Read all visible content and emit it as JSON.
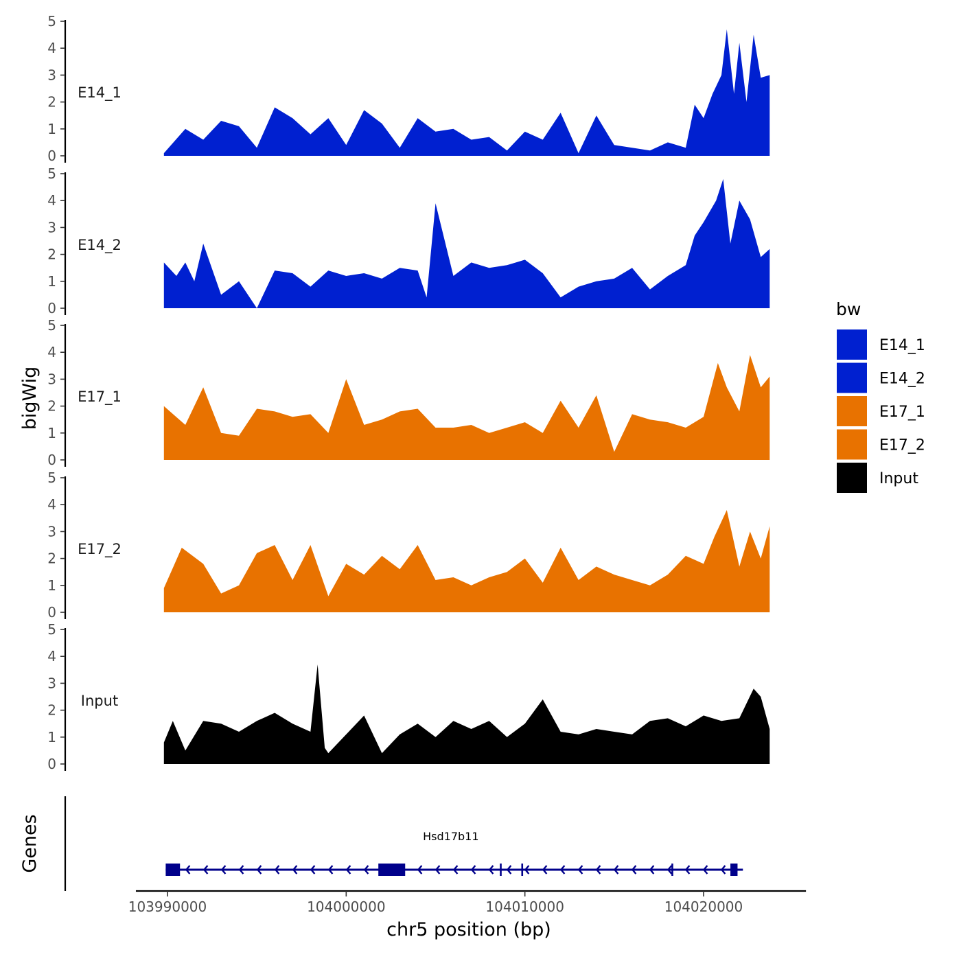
{
  "chart_data": {
    "type": "area",
    "region": "chr5",
    "xlabel": "chr5 position (bp)",
    "ylabel": "bigWig",
    "gene_panel_label": "Genes",
    "xlim": [
      103989000,
      104024000
    ],
    "x_ticks": [
      103990000,
      104000000,
      104010000,
      104020000
    ],
    "x_tick_labels": [
      "103990000",
      "104000000",
      "104010000",
      "104020000"
    ],
    "ylim": [
      0,
      5
    ],
    "y_ticks": [
      0,
      1,
      2,
      3,
      4,
      5
    ],
    "y_tick_labels": [
      "0",
      "1",
      "2",
      "3",
      "4",
      "5"
    ],
    "legend": {
      "title": "bw",
      "entries": [
        {
          "label": "E14_1",
          "color": "#0020D0"
        },
        {
          "label": "E14_2",
          "color": "#0020D0"
        },
        {
          "label": "E17_1",
          "color": "#E87200"
        },
        {
          "label": "E17_2",
          "color": "#E87200"
        },
        {
          "label": "Input",
          "color": "#000000"
        }
      ]
    },
    "series": [
      {
        "name": "E14_1",
        "color": "#0020D0",
        "x": [
          103989800,
          103991000,
          103992000,
          103993000,
          103994000,
          103995000,
          103996000,
          103997000,
          103998000,
          103999000,
          104000000,
          104001000,
          104002000,
          104003000,
          104004000,
          104005000,
          104006000,
          104007000,
          104008000,
          104009000,
          104010000,
          104011000,
          104012000,
          104013000,
          104014000,
          104015000,
          104016000,
          104017000,
          104018000,
          104019000,
          104019500,
          104020000,
          104020500,
          104021000,
          104021300,
          104021700,
          104022000,
          104022400,
          104022800,
          104023200,
          104023700
        ],
        "values": [
          0.1,
          1.0,
          0.6,
          1.3,
          1.1,
          0.3,
          1.8,
          1.4,
          0.8,
          1.4,
          0.4,
          1.7,
          1.2,
          0.3,
          1.4,
          0.9,
          1.0,
          0.6,
          0.7,
          0.2,
          0.9,
          0.6,
          1.6,
          0.1,
          1.5,
          0.4,
          0.3,
          0.2,
          0.5,
          0.3,
          1.9,
          1.4,
          2.3,
          3.0,
          4.7,
          2.3,
          4.2,
          2.0,
          4.5,
          2.9,
          3.0
        ]
      },
      {
        "name": "E14_2",
        "color": "#0020D0",
        "x": [
          103989800,
          103990500,
          103991000,
          103991500,
          103992000,
          103993000,
          103994000,
          103995000,
          103996000,
          103997000,
          103998000,
          103999000,
          104000000,
          104001000,
          104002000,
          104003000,
          104004000,
          104004500,
          104005000,
          104006000,
          104007000,
          104008000,
          104009000,
          104010000,
          104011000,
          104012000,
          104013000,
          104014000,
          104015000,
          104016000,
          104017000,
          104018000,
          104019000,
          104019500,
          104020000,
          104020700,
          104021100,
          104021500,
          104022000,
          104022600,
          104023200,
          104023700
        ],
        "values": [
          1.7,
          1.2,
          1.7,
          1.0,
          2.4,
          0.5,
          1.0,
          0.0,
          1.4,
          1.3,
          0.8,
          1.4,
          1.2,
          1.3,
          1.1,
          1.5,
          1.4,
          0.4,
          3.9,
          1.2,
          1.7,
          1.5,
          1.6,
          1.8,
          1.3,
          0.4,
          0.8,
          1.0,
          1.1,
          1.5,
          0.7,
          1.2,
          1.6,
          2.7,
          3.2,
          4.0,
          4.8,
          2.4,
          4.0,
          3.3,
          1.9,
          2.2
        ]
      },
      {
        "name": "E17_1",
        "color": "#E87200",
        "x": [
          103989800,
          103991000,
          103992000,
          103993000,
          103994000,
          103995000,
          103996000,
          103997000,
          103998000,
          103999000,
          104000000,
          104001000,
          104002000,
          104003000,
          104004000,
          104005000,
          104006000,
          104007000,
          104008000,
          104009000,
          104010000,
          104011000,
          104012000,
          104013000,
          104014000,
          104015000,
          104016000,
          104017000,
          104018000,
          104019000,
          104020000,
          104020800,
          104021300,
          104022000,
          104022600,
          104023200,
          104023700
        ],
        "values": [
          2.0,
          1.3,
          2.7,
          1.0,
          0.9,
          1.9,
          1.8,
          1.6,
          1.7,
          1.0,
          3.0,
          1.3,
          1.5,
          1.8,
          1.9,
          1.2,
          1.2,
          1.3,
          1.0,
          1.2,
          1.4,
          1.0,
          2.2,
          1.2,
          2.4,
          0.3,
          1.7,
          1.5,
          1.4,
          1.2,
          1.6,
          3.6,
          2.7,
          1.8,
          3.9,
          2.7,
          3.1
        ]
      },
      {
        "name": "E17_2",
        "color": "#E87200",
        "x": [
          103989800,
          103990800,
          103992000,
          103993000,
          103994000,
          103995000,
          103996000,
          103997000,
          103998000,
          103999000,
          104000000,
          104001000,
          104002000,
          104003000,
          104004000,
          104005000,
          104006000,
          104007000,
          104008000,
          104009000,
          104010000,
          104011000,
          104012000,
          104013000,
          104014000,
          104015000,
          104016000,
          104017000,
          104018000,
          104019000,
          104020000,
          104020600,
          104021300,
          104022000,
          104022600,
          104023200,
          104023700
        ],
        "values": [
          0.9,
          2.4,
          1.8,
          0.7,
          1.0,
          2.2,
          2.5,
          1.2,
          2.5,
          0.6,
          1.8,
          1.4,
          2.1,
          1.6,
          2.5,
          1.2,
          1.3,
          1.0,
          1.3,
          1.5,
          2.0,
          1.1,
          2.4,
          1.2,
          1.7,
          1.4,
          1.2,
          1.0,
          1.4,
          2.1,
          1.8,
          2.8,
          3.8,
          1.7,
          3.0,
          2.0,
          3.2
        ]
      },
      {
        "name": "Input",
        "color": "#000000",
        "x": [
          103989800,
          103990300,
          103991000,
          103992000,
          103993000,
          103994000,
          103995000,
          103996000,
          103997000,
          103998000,
          103998400,
          103998800,
          103999000,
          104000000,
          104001000,
          104002000,
          104003000,
          104004000,
          104005000,
          104006000,
          104007000,
          104008000,
          104009000,
          104010000,
          104011000,
          104012000,
          104013000,
          104014000,
          104015000,
          104016000,
          104017000,
          104018000,
          104019000,
          104020000,
          104021000,
          104022000,
          104022800,
          104023200,
          104023700
        ],
        "values": [
          0.8,
          1.6,
          0.5,
          1.6,
          1.5,
          1.2,
          1.6,
          1.9,
          1.5,
          1.2,
          3.7,
          0.6,
          0.4,
          1.1,
          1.8,
          0.4,
          1.1,
          1.5,
          1.0,
          1.6,
          1.3,
          1.6,
          1.0,
          1.5,
          2.4,
          1.2,
          1.1,
          1.3,
          1.2,
          1.1,
          1.6,
          1.7,
          1.4,
          1.8,
          1.6,
          1.7,
          2.8,
          2.5,
          1.3
        ]
      }
    ],
    "genes": [
      {
        "name": "Hsd17b11",
        "strand": "-",
        "start": 103989900,
        "end": 104022200,
        "exons": [
          [
            103989900,
            103990700
          ],
          [
            104001800,
            104003300
          ],
          [
            104008600,
            104008700
          ],
          [
            104009800,
            104009900
          ],
          [
            104018200,
            104018300
          ],
          [
            104021500,
            104021900
          ]
        ]
      }
    ]
  }
}
